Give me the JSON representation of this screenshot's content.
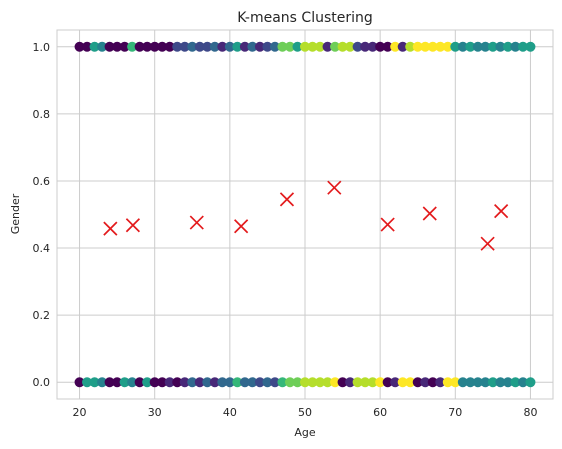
{
  "chart_data": {
    "type": "scatter",
    "title": "K-means Clustering",
    "xlabel": "Age",
    "ylabel": "Gender",
    "xlim": [
      17,
      83
    ],
    "ylim": [
      -0.05,
      1.05
    ],
    "xticks": [
      20,
      30,
      40,
      50,
      60,
      70,
      80
    ],
    "yticks": [
      0.0,
      0.2,
      0.4,
      0.6,
      0.8,
      1.0
    ],
    "xtick_labels": [
      "20",
      "30",
      "40",
      "50",
      "60",
      "70",
      "80"
    ],
    "ytick_labels": [
      "0.0",
      "0.2",
      "0.4",
      "0.6",
      "0.8",
      "1.0"
    ],
    "grid": true,
    "point_colormap": "viridis",
    "cluster_colors": [
      "#440154",
      "#482878",
      "#3e4989",
      "#31688e",
      "#26828e",
      "#1f9e89",
      "#35b779",
      "#6ece58",
      "#b5de2b",
      "#fde725"
    ],
    "centroid_color": "#e31a1c",
    "series": [
      {
        "marker": "circle",
        "points": [
          [
            20,
            1,
            0
          ],
          [
            21,
            1,
            0
          ],
          [
            22,
            1,
            5
          ],
          [
            23,
            1,
            4
          ],
          [
            24,
            1,
            0
          ],
          [
            25,
            1,
            0
          ],
          [
            26,
            1,
            0
          ],
          [
            27,
            1,
            6
          ],
          [
            28,
            1,
            0
          ],
          [
            29,
            1,
            0
          ],
          [
            30,
            1,
            0
          ],
          [
            31,
            1,
            0
          ],
          [
            32,
            1,
            0
          ],
          [
            33,
            1,
            2
          ],
          [
            34,
            1,
            2
          ],
          [
            35,
            1,
            3
          ],
          [
            36,
            1,
            2
          ],
          [
            37,
            1,
            2
          ],
          [
            38,
            1,
            3
          ],
          [
            39,
            1,
            1
          ],
          [
            40,
            1,
            3
          ],
          [
            41,
            1,
            5
          ],
          [
            42,
            1,
            1
          ],
          [
            43,
            1,
            3
          ],
          [
            44,
            1,
            1
          ],
          [
            45,
            1,
            2
          ],
          [
            46,
            1,
            3
          ],
          [
            47,
            1,
            7
          ],
          [
            48,
            1,
            7
          ],
          [
            49,
            1,
            5
          ],
          [
            50,
            1,
            8
          ],
          [
            51,
            1,
            8
          ],
          [
            52,
            1,
            8
          ],
          [
            53,
            1,
            1
          ],
          [
            54,
            1,
            7
          ],
          [
            55,
            1,
            8
          ],
          [
            56,
            1,
            8
          ],
          [
            57,
            1,
            2
          ],
          [
            58,
            1,
            1
          ],
          [
            59,
            1,
            1
          ],
          [
            60,
            1,
            0
          ],
          [
            61,
            1,
            0
          ],
          [
            62,
            1,
            9
          ],
          [
            63,
            1,
            1
          ],
          [
            64,
            1,
            8
          ],
          [
            65,
            1,
            9
          ],
          [
            66,
            1,
            9
          ],
          [
            67,
            1,
            9
          ],
          [
            68,
            1,
            9
          ],
          [
            69,
            1,
            9
          ],
          [
            70,
            1,
            5
          ],
          [
            71,
            1,
            4
          ],
          [
            72,
            1,
            5
          ],
          [
            73,
            1,
            4
          ],
          [
            74,
            1,
            4
          ],
          [
            75,
            1,
            5
          ],
          [
            76,
            1,
            4
          ],
          [
            77,
            1,
            5
          ],
          [
            78,
            1,
            4
          ],
          [
            79,
            1,
            5
          ],
          [
            80,
            1,
            5
          ],
          [
            20,
            0,
            0
          ],
          [
            21,
            0,
            5
          ],
          [
            22,
            0,
            5
          ],
          [
            23,
            0,
            4
          ],
          [
            24,
            0,
            0
          ],
          [
            25,
            0,
            0
          ],
          [
            26,
            0,
            5
          ],
          [
            27,
            0,
            4
          ],
          [
            28,
            0,
            0
          ],
          [
            29,
            0,
            5
          ],
          [
            30,
            0,
            0
          ],
          [
            31,
            0,
            0
          ],
          [
            32,
            0,
            1
          ],
          [
            33,
            0,
            0
          ],
          [
            34,
            0,
            1
          ],
          [
            35,
            0,
            3
          ],
          [
            36,
            0,
            1
          ],
          [
            37,
            0,
            3
          ],
          [
            38,
            0,
            1
          ],
          [
            39,
            0,
            3
          ],
          [
            40,
            0,
            3
          ],
          [
            41,
            0,
            6
          ],
          [
            42,
            0,
            3
          ],
          [
            43,
            0,
            3
          ],
          [
            44,
            0,
            2
          ],
          [
            45,
            0,
            3
          ],
          [
            46,
            0,
            2
          ],
          [
            47,
            0,
            6
          ],
          [
            48,
            0,
            7
          ],
          [
            49,
            0,
            7
          ],
          [
            50,
            0,
            8
          ],
          [
            51,
            0,
            8
          ],
          [
            52,
            0,
            8
          ],
          [
            53,
            0,
            8
          ],
          [
            54,
            0,
            9
          ],
          [
            55,
            0,
            0
          ],
          [
            56,
            0,
            1
          ],
          [
            57,
            0,
            8
          ],
          [
            58,
            0,
            8
          ],
          [
            59,
            0,
            8
          ],
          [
            60,
            0,
            9
          ],
          [
            61,
            0,
            0
          ],
          [
            62,
            0,
            1
          ],
          [
            63,
            0,
            9
          ],
          [
            64,
            0,
            9
          ],
          [
            65,
            0,
            0
          ],
          [
            66,
            0,
            1
          ],
          [
            67,
            0,
            0
          ],
          [
            68,
            0,
            1
          ],
          [
            69,
            0,
            9
          ],
          [
            70,
            0,
            9
          ],
          [
            71,
            0,
            4
          ],
          [
            72,
            0,
            4
          ],
          [
            73,
            0,
            4
          ],
          [
            74,
            0,
            4
          ],
          [
            75,
            0,
            5
          ],
          [
            76,
            0,
            4
          ],
          [
            77,
            0,
            4
          ],
          [
            78,
            0,
            5
          ],
          [
            79,
            0,
            4
          ],
          [
            80,
            0,
            5
          ]
        ]
      },
      {
        "marker": "x",
        "points": [
          [
            24.1,
            0.458
          ],
          [
            27.1,
            0.468
          ],
          [
            35.6,
            0.476
          ],
          [
            41.5,
            0.465
          ],
          [
            47.6,
            0.545
          ],
          [
            53.9,
            0.58
          ],
          [
            61.0,
            0.47
          ],
          [
            66.6,
            0.503
          ],
          [
            74.3,
            0.413
          ],
          [
            76.1,
            0.51
          ]
        ]
      }
    ]
  }
}
